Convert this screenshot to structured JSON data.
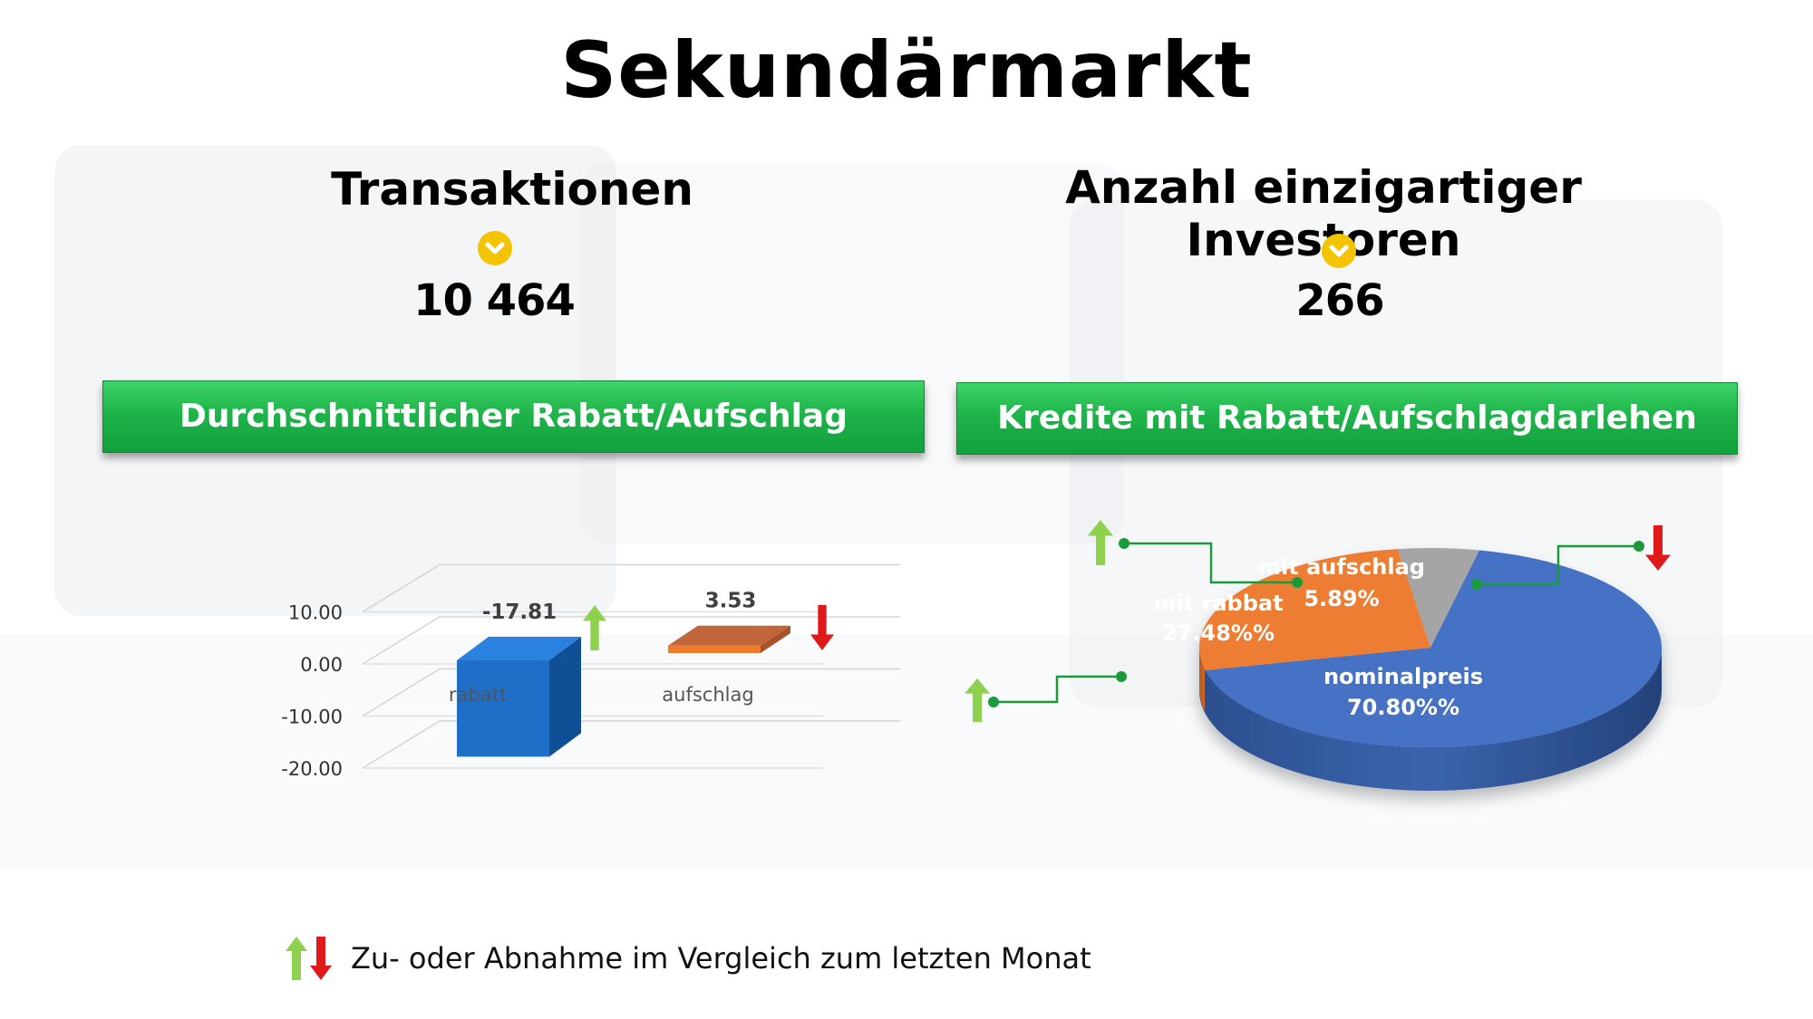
{
  "title": "Sekundärmarkt",
  "kpis": {
    "transactions": {
      "label": "Transaktionen",
      "value": "10 464"
    },
    "investors": {
      "label": "Anzahl einzigartiger Investoren",
      "value": "266"
    }
  },
  "banners": {
    "left": "Durchschnittlicher Rabatt/Aufschlag",
    "right": "Kredite mit Rabatt/Aufschlagdarlehen"
  },
  "legend": {
    "text": "Zu- oder Abnahme im Vergleich zum letzten Monat"
  },
  "colors": {
    "blue": "#1f6fc8",
    "orange": "#f07a2a",
    "pie_blue": "#4472c4",
    "pie_orange": "#ed7d31",
    "pie_gray": "#a5a5a5",
    "green": "#8dd14f",
    "red": "#e0191b",
    "banner_green": "#1fb44a",
    "connector": "#1a9a3a"
  },
  "chart_data": [
    {
      "type": "bar",
      "categories": [
        "rabatt",
        "aufschlag"
      ],
      "values": [
        -17.81,
        3.53
      ],
      "data_labels": [
        "-17.81",
        "3.53"
      ],
      "y_ticks": [
        10,
        0,
        -10,
        -20
      ],
      "y_tick_labels": [
        "10.00",
        "0.00",
        "-10.00",
        "-20.00"
      ],
      "ylim": [
        -20,
        10
      ],
      "trend": [
        "up",
        "down"
      ],
      "grid": true
    },
    {
      "type": "pie",
      "categories": [
        "nominalpreis",
        "mit rabbat",
        "mit aufschlag"
      ],
      "values": [
        70.8,
        27.48,
        5.89
      ],
      "labels": [
        "nominalpreis",
        "mit rabbat",
        "mit aufschlag"
      ],
      "value_labels": [
        "70.80%%",
        "27.48%%",
        "5.89%"
      ],
      "trend": [
        "down",
        "up",
        "up"
      ]
    }
  ]
}
